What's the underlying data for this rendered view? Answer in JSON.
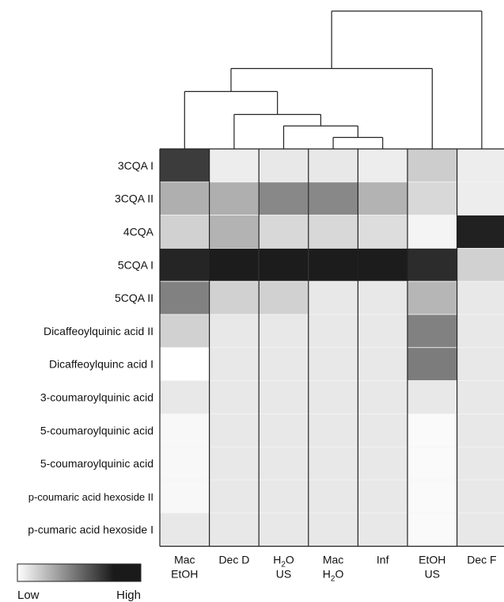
{
  "chart_data": {
    "type": "heatmap",
    "rows": [
      "3CQA I",
      "3CQA II",
      "4CQA",
      "5CQA I",
      "5CQA II",
      "Dicaffeoylquinic acid II",
      "Dicaffeoylquinc acid I",
      "3-coumaroylquinic acid",
      "5-coumaroylquinic acid",
      "5-coumaroylquinic acid",
      "p-coumaric acid hexoside II",
      "p-cumaric acid hexoside I"
    ],
    "columns": [
      {
        "lines": [
          {
            "text": "Mac"
          },
          {
            "text": "EtOH"
          }
        ]
      },
      {
        "lines": [
          {
            "text": "Dec D"
          }
        ]
      },
      {
        "lines": [
          {
            "text": "H",
            "sub": "2",
            "after": "O"
          },
          {
            "text": "US"
          }
        ]
      },
      {
        "lines": [
          {
            "text": "Mac"
          },
          {
            "text": "H",
            "sub": "2",
            "after": "O"
          }
        ]
      },
      {
        "lines": [
          {
            "text": "Inf"
          }
        ]
      },
      {
        "lines": [
          {
            "text": "EtOH"
          },
          {
            "text": "US"
          }
        ]
      },
      {
        "lines": [
          {
            "text": "Dec F"
          }
        ]
      }
    ],
    "values": [
      [
        0.85,
        0.08,
        0.1,
        0.1,
        0.08,
        0.22,
        0.08
      ],
      [
        0.35,
        0.35,
        0.52,
        0.52,
        0.33,
        0.17,
        0.08
      ],
      [
        0.2,
        0.33,
        0.17,
        0.17,
        0.15,
        0.05,
        0.97
      ],
      [
        0.95,
        0.99,
        0.99,
        0.99,
        0.99,
        0.92,
        0.2
      ],
      [
        0.55,
        0.2,
        0.2,
        0.1,
        0.1,
        0.32,
        0.1
      ],
      [
        0.2,
        0.1,
        0.1,
        0.1,
        0.1,
        0.55,
        0.1
      ],
      [
        0.0,
        0.1,
        0.1,
        0.1,
        0.1,
        0.57,
        0.1
      ],
      [
        0.1,
        0.1,
        0.1,
        0.1,
        0.1,
        0.1,
        0.1
      ],
      [
        0.03,
        0.1,
        0.1,
        0.1,
        0.1,
        0.02,
        0.1
      ],
      [
        0.03,
        0.1,
        0.1,
        0.1,
        0.1,
        0.02,
        0.1
      ],
      [
        0.03,
        0.1,
        0.1,
        0.1,
        0.1,
        0.02,
        0.1
      ],
      [
        0.1,
        0.1,
        0.1,
        0.1,
        0.1,
        0.02,
        0.1
      ]
    ],
    "color_low": "#ffffff",
    "color_high": "#1a1a1a",
    "legend": {
      "low_label": "Low",
      "high_label": "High",
      "placement": "bottom-left"
    },
    "dendrogram": {
      "placement": "top",
      "leaf_order": [
        "Mac EtOH",
        "Dec D",
        "H2O US",
        "Mac H2O",
        "Inf",
        "EtOH US",
        "Dec F"
      ],
      "merges": [
        {
          "left": 3,
          "right": 4,
          "height": 1
        },
        {
          "left": 2,
          "right": -1,
          "height": 2
        },
        {
          "left": 1,
          "right": -2,
          "height": 3
        },
        {
          "left": 0,
          "right": -3,
          "height": 5
        },
        {
          "left": 5,
          "right": -4,
          "height": 7
        },
        {
          "left": -5,
          "right": 6,
          "height": 12
        }
      ],
      "max_height": 12
    }
  }
}
